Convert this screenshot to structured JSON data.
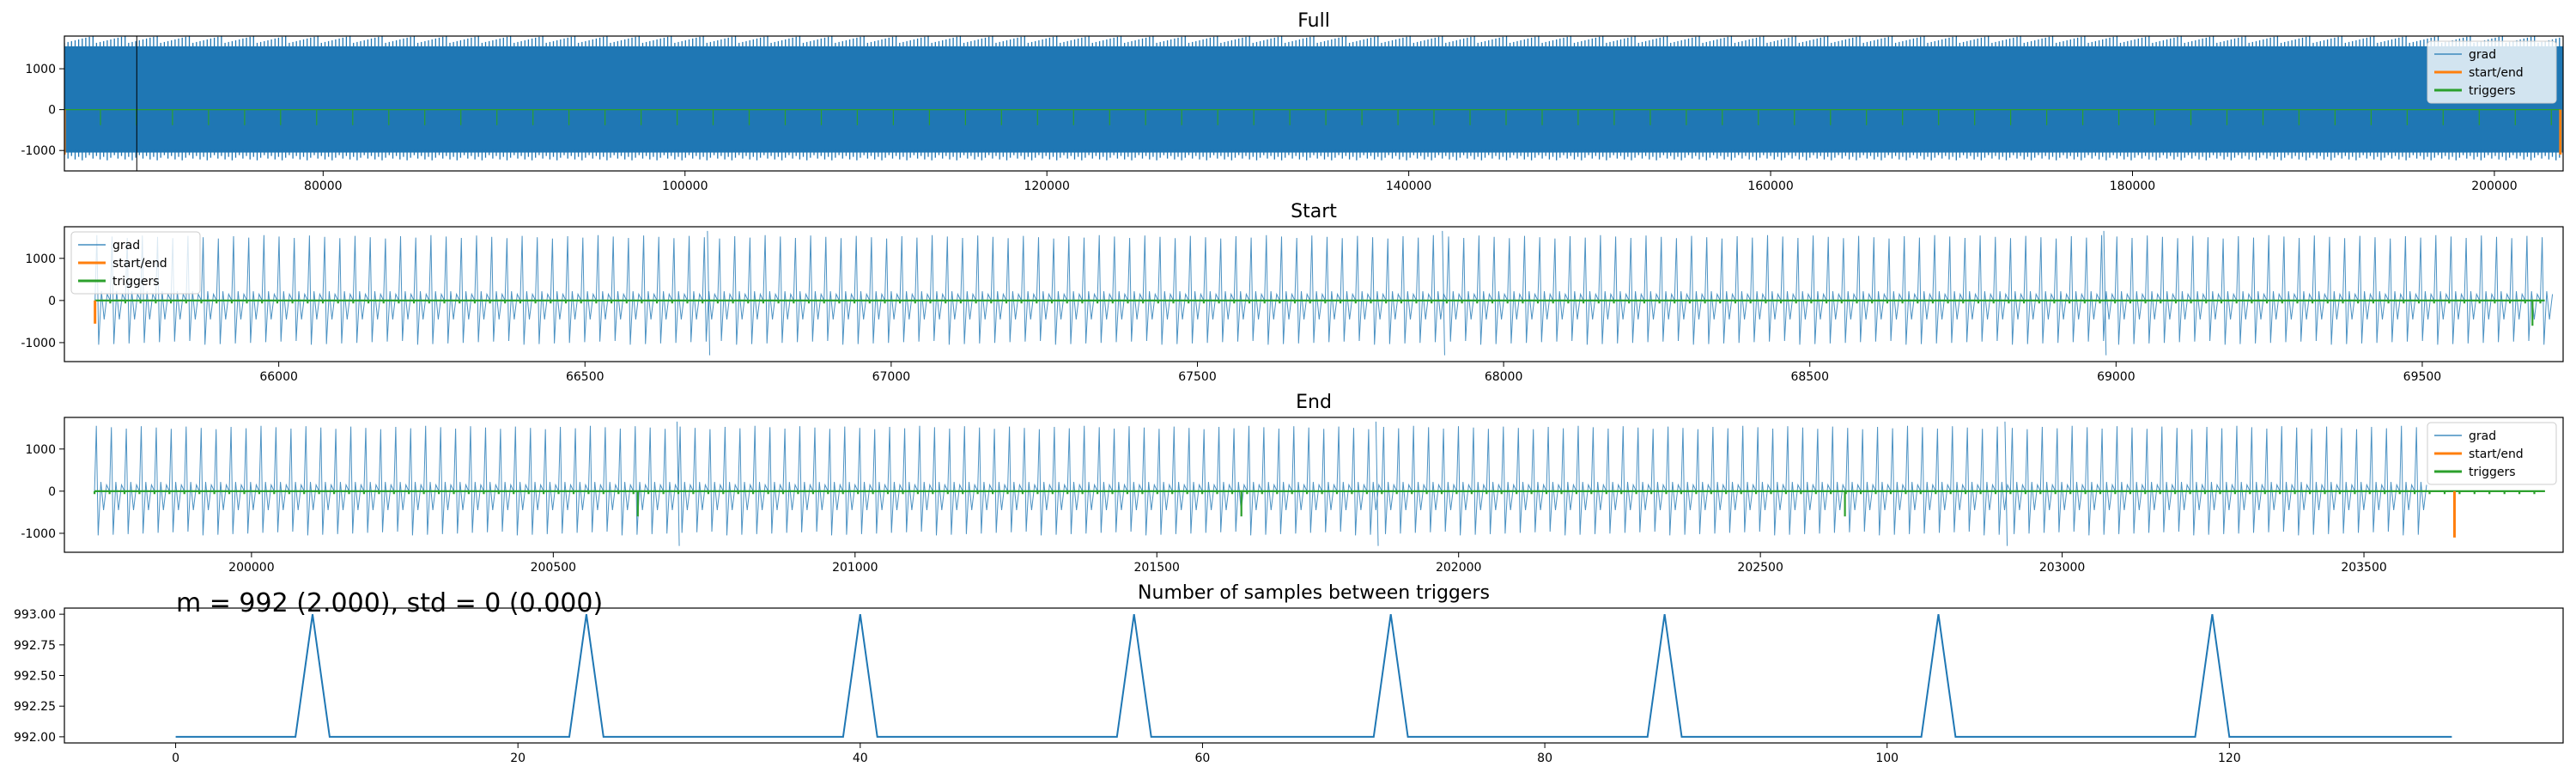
{
  "colors": {
    "grad": "#1f77b4",
    "start_end": "#ff7f0e",
    "triggers": "#2ca02c",
    "axes": "#000000",
    "background": "#ffffff"
  },
  "chart_data": [
    {
      "id": "full",
      "type": "line",
      "title": "Full",
      "xlabel": "",
      "ylabel": "",
      "xlim": [
        65700,
        203800
      ],
      "ylim": [
        -1500,
        1800
      ],
      "xticks": [
        80000,
        100000,
        120000,
        140000,
        160000,
        180000,
        200000
      ],
      "yticks": [
        -1000,
        0,
        1000
      ],
      "grid": false,
      "legend": {
        "position": "top-right",
        "entries": [
          "grad",
          "start/end",
          "triggers"
        ]
      },
      "series": [
        {
          "name": "grad",
          "kind": "dense-band",
          "x_range": [
            65700,
            203800
          ],
          "max": 1550,
          "min": -1050
        },
        {
          "name": "start/end",
          "kind": "markers",
          "x": [
            65700,
            203650
          ],
          "depth": -1100
        },
        {
          "name": "triggers",
          "kind": "periodic",
          "start": 65700,
          "end": 203650,
          "period": 1992,
          "depth": -380
        }
      ],
      "vline_x": 69700
    },
    {
      "id": "start",
      "type": "line",
      "title": "Start",
      "xlabel": "",
      "ylabel": "",
      "xlim": [
        65650,
        69730
      ],
      "ylim": [
        -1450,
        1750
      ],
      "xticks": [
        66000,
        66500,
        67000,
        67500,
        68000,
        68500,
        69000,
        69500
      ],
      "yticks": [
        -1000,
        0,
        1000
      ],
      "grid": false,
      "legend": {
        "position": "top-left",
        "entries": [
          "grad",
          "start/end",
          "triggers"
        ]
      },
      "series": [
        {
          "name": "grad",
          "kind": "periodic-spikes",
          "x_range": [
            65700,
            69700
          ],
          "period": 24.8,
          "max": 1550,
          "min": -1050
        },
        {
          "name": "start/end",
          "kind": "markers",
          "x": [
            65700
          ],
          "depth": -550
        },
        {
          "name": "triggers",
          "kind": "periodic",
          "start": 65700,
          "end": 69700,
          "period": 24.8,
          "depth": -70,
          "deep": [
            {
              "x": 69680,
              "depth": -600
            }
          ]
        }
      ]
    },
    {
      "id": "end",
      "type": "line",
      "title": "End",
      "xlabel": "",
      "ylabel": "",
      "xlim": [
        199690,
        203830
      ],
      "ylim": [
        -1450,
        1750
      ],
      "xticks": [
        200000,
        200500,
        201000,
        201500,
        202000,
        202500,
        203000,
        203500
      ],
      "yticks": [
        -1000,
        0,
        1000
      ],
      "grid": false,
      "legend": {
        "position": "top-right",
        "entries": [
          "grad",
          "start/end",
          "triggers"
        ]
      },
      "series": [
        {
          "name": "grad",
          "kind": "periodic-spikes",
          "x_range": [
            199740,
            203600
          ],
          "period": 24.8,
          "max": 1550,
          "min": -1050
        },
        {
          "name": "start/end",
          "kind": "markers",
          "x": [
            203650
          ],
          "depth": -1100
        },
        {
          "name": "triggers",
          "kind": "periodic",
          "start": 199740,
          "end": 203800,
          "period": 24.8,
          "depth": -70,
          "deep": [
            {
              "x": 200640,
              "depth": -600
            },
            {
              "x": 201640,
              "depth": -600
            },
            {
              "x": 202640,
              "depth": -600
            }
          ]
        }
      ]
    },
    {
      "id": "intervals",
      "type": "line",
      "title": "Number of samples between triggers",
      "xlabel": "",
      "ylabel": "",
      "xlim": [
        -6.5,
        139.5
      ],
      "ylim": [
        991.95,
        993.05
      ],
      "xticks": [
        0,
        20,
        40,
        60,
        80,
        100,
        120
      ],
      "yticks": [
        992.0,
        992.25,
        992.5,
        992.75,
        993.0
      ],
      "ytick_labels": [
        "992.00",
        "992.25",
        "992.50",
        "992.75",
        "993.00"
      ],
      "grid": false,
      "annotation": "m = 992 (2.000), std = 0 (0.000)",
      "series": [
        {
          "kind": "step-peaks",
          "x_range": [
            0,
            133
          ],
          "base": 992,
          "peak": 993,
          "peaks_at": [
            8,
            24,
            40,
            56,
            71,
            87,
            103,
            119
          ]
        }
      ]
    }
  ]
}
